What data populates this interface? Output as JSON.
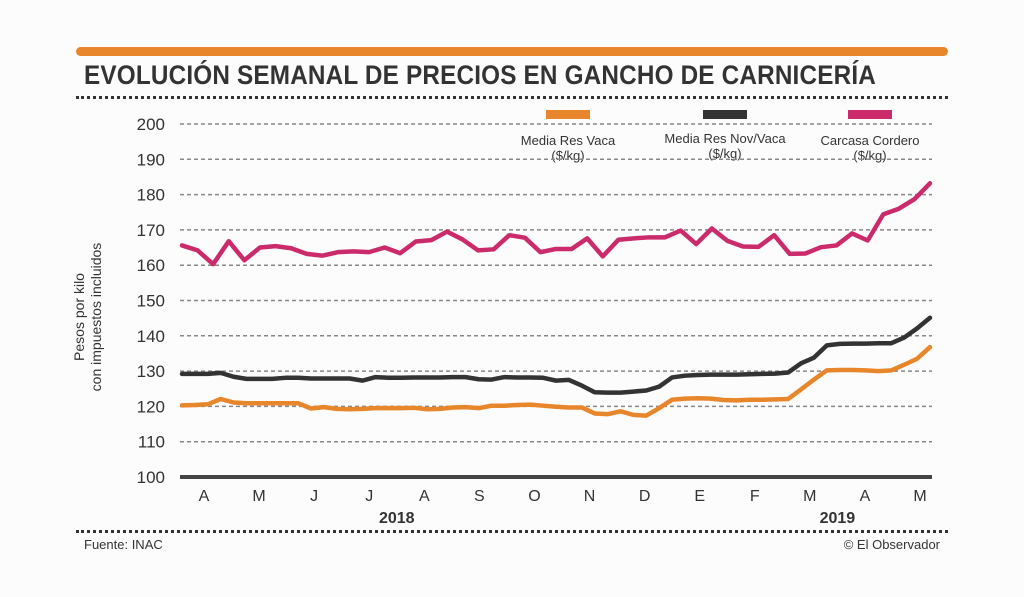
{
  "header": {
    "title": "EVOLUCIÓN SEMANAL DE PRECIOS EN GANCHO DE CARNICERÍA",
    "accent_color": "#e8862c"
  },
  "footer": {
    "source": "Fuente: INAC",
    "credit": "© El Observador"
  },
  "chart_data": {
    "type": "line",
    "title": "EVOLUCIÓN SEMANAL DE PRECIOS EN GANCHO DE CARNICERÍA",
    "xlabel": "",
    "ylabel": "Pesos por kilo con impuestos incluidos",
    "ylabel_lines": [
      "Pesos por kilo",
      "con impuestos incluidos"
    ],
    "ylim": [
      100,
      200
    ],
    "yticks": [
      100,
      110,
      120,
      130,
      140,
      150,
      160,
      170,
      180,
      190,
      200
    ],
    "grid": true,
    "legend_position": "top-right",
    "x_month_labels": [
      "A",
      "M",
      "J",
      "J",
      "A",
      "S",
      "O",
      "N",
      "D",
      "E",
      "F",
      "M",
      "A",
      "M"
    ],
    "x_year_labels": [
      {
        "label": "2018",
        "month_index": 3.5
      },
      {
        "label": "2019",
        "month_index": 11.5
      }
    ],
    "x_weeks": 58,
    "series": [
      {
        "name": "Media Res Vaca",
        "unit": "($/kg)",
        "color": "#e8862c",
        "values": [
          120.3,
          120.4,
          120.6,
          122.1,
          121.1,
          120.9,
          120.9,
          120.9,
          120.9,
          120.9,
          119.4,
          119.8,
          119.3,
          119.2,
          119.3,
          119.5,
          119.5,
          119.5,
          119.6,
          119.2,
          119.3,
          119.7,
          119.8,
          119.5,
          120.2,
          120.2,
          120.4,
          120.5,
          120.2,
          119.9,
          119.7,
          119.7,
          118.0,
          117.8,
          118.6,
          117.6,
          117.4,
          119.5,
          121.9,
          122.2,
          122.3,
          122.2,
          121.8,
          121.7,
          121.9,
          121.9,
          122.0,
          122.1,
          124.8,
          127.6,
          130.2,
          130.3,
          130.3,
          130.2,
          130.0,
          130.2,
          131.8,
          133.5,
          136.8
        ],
        "label_lines": [
          "Media Res Vaca",
          "($/kg)"
        ]
      },
      {
        "name": "Media Res Nov/Vaca",
        "unit": "($/kg)",
        "color": "#333333",
        "values": [
          129.2,
          129.2,
          129.2,
          129.5,
          128.4,
          127.8,
          127.8,
          127.8,
          128.1,
          128.1,
          127.9,
          127.9,
          127.9,
          127.9,
          127.3,
          128.3,
          128.1,
          128.1,
          128.2,
          128.2,
          128.2,
          128.3,
          128.3,
          127.7,
          127.6,
          128.3,
          128.2,
          128.2,
          128.1,
          127.3,
          127.5,
          125.9,
          124.0,
          123.9,
          123.9,
          124.2,
          124.5,
          125.6,
          128.2,
          128.7,
          128.9,
          129.0,
          129.0,
          129.0,
          129.1,
          129.2,
          129.3,
          129.6,
          132.2,
          133.8,
          137.3,
          137.7,
          137.8,
          137.8,
          137.9,
          137.9,
          139.5,
          142.1,
          145.1
        ],
        "label_lines": [
          "Media Res Nov/Vaca",
          "($/kg)"
        ]
      },
      {
        "name": "Carcasa Cordero",
        "unit": "($/kg)",
        "color": "#cc2b6b",
        "values": [
          165.6,
          164.2,
          160.3,
          166.8,
          161.4,
          165.0,
          165.4,
          164.8,
          163.2,
          162.7,
          163.7,
          163.9,
          163.7,
          165.0,
          163.4,
          166.7,
          167.1,
          169.5,
          167.3,
          164.2,
          164.5,
          168.5,
          167.8,
          163.7,
          164.6,
          164.6,
          167.6,
          162.5,
          167.2,
          167.6,
          167.9,
          167.9,
          169.8,
          166.0,
          170.4,
          166.9,
          165.3,
          165.2,
          168.5,
          163.2,
          163.3,
          165.1,
          165.6,
          169.0,
          167.0,
          174.4,
          176.0,
          178.7,
          183.2
        ],
        "label_lines": [
          "Carcasa Cordero",
          "($/kg)"
        ]
      }
    ]
  }
}
